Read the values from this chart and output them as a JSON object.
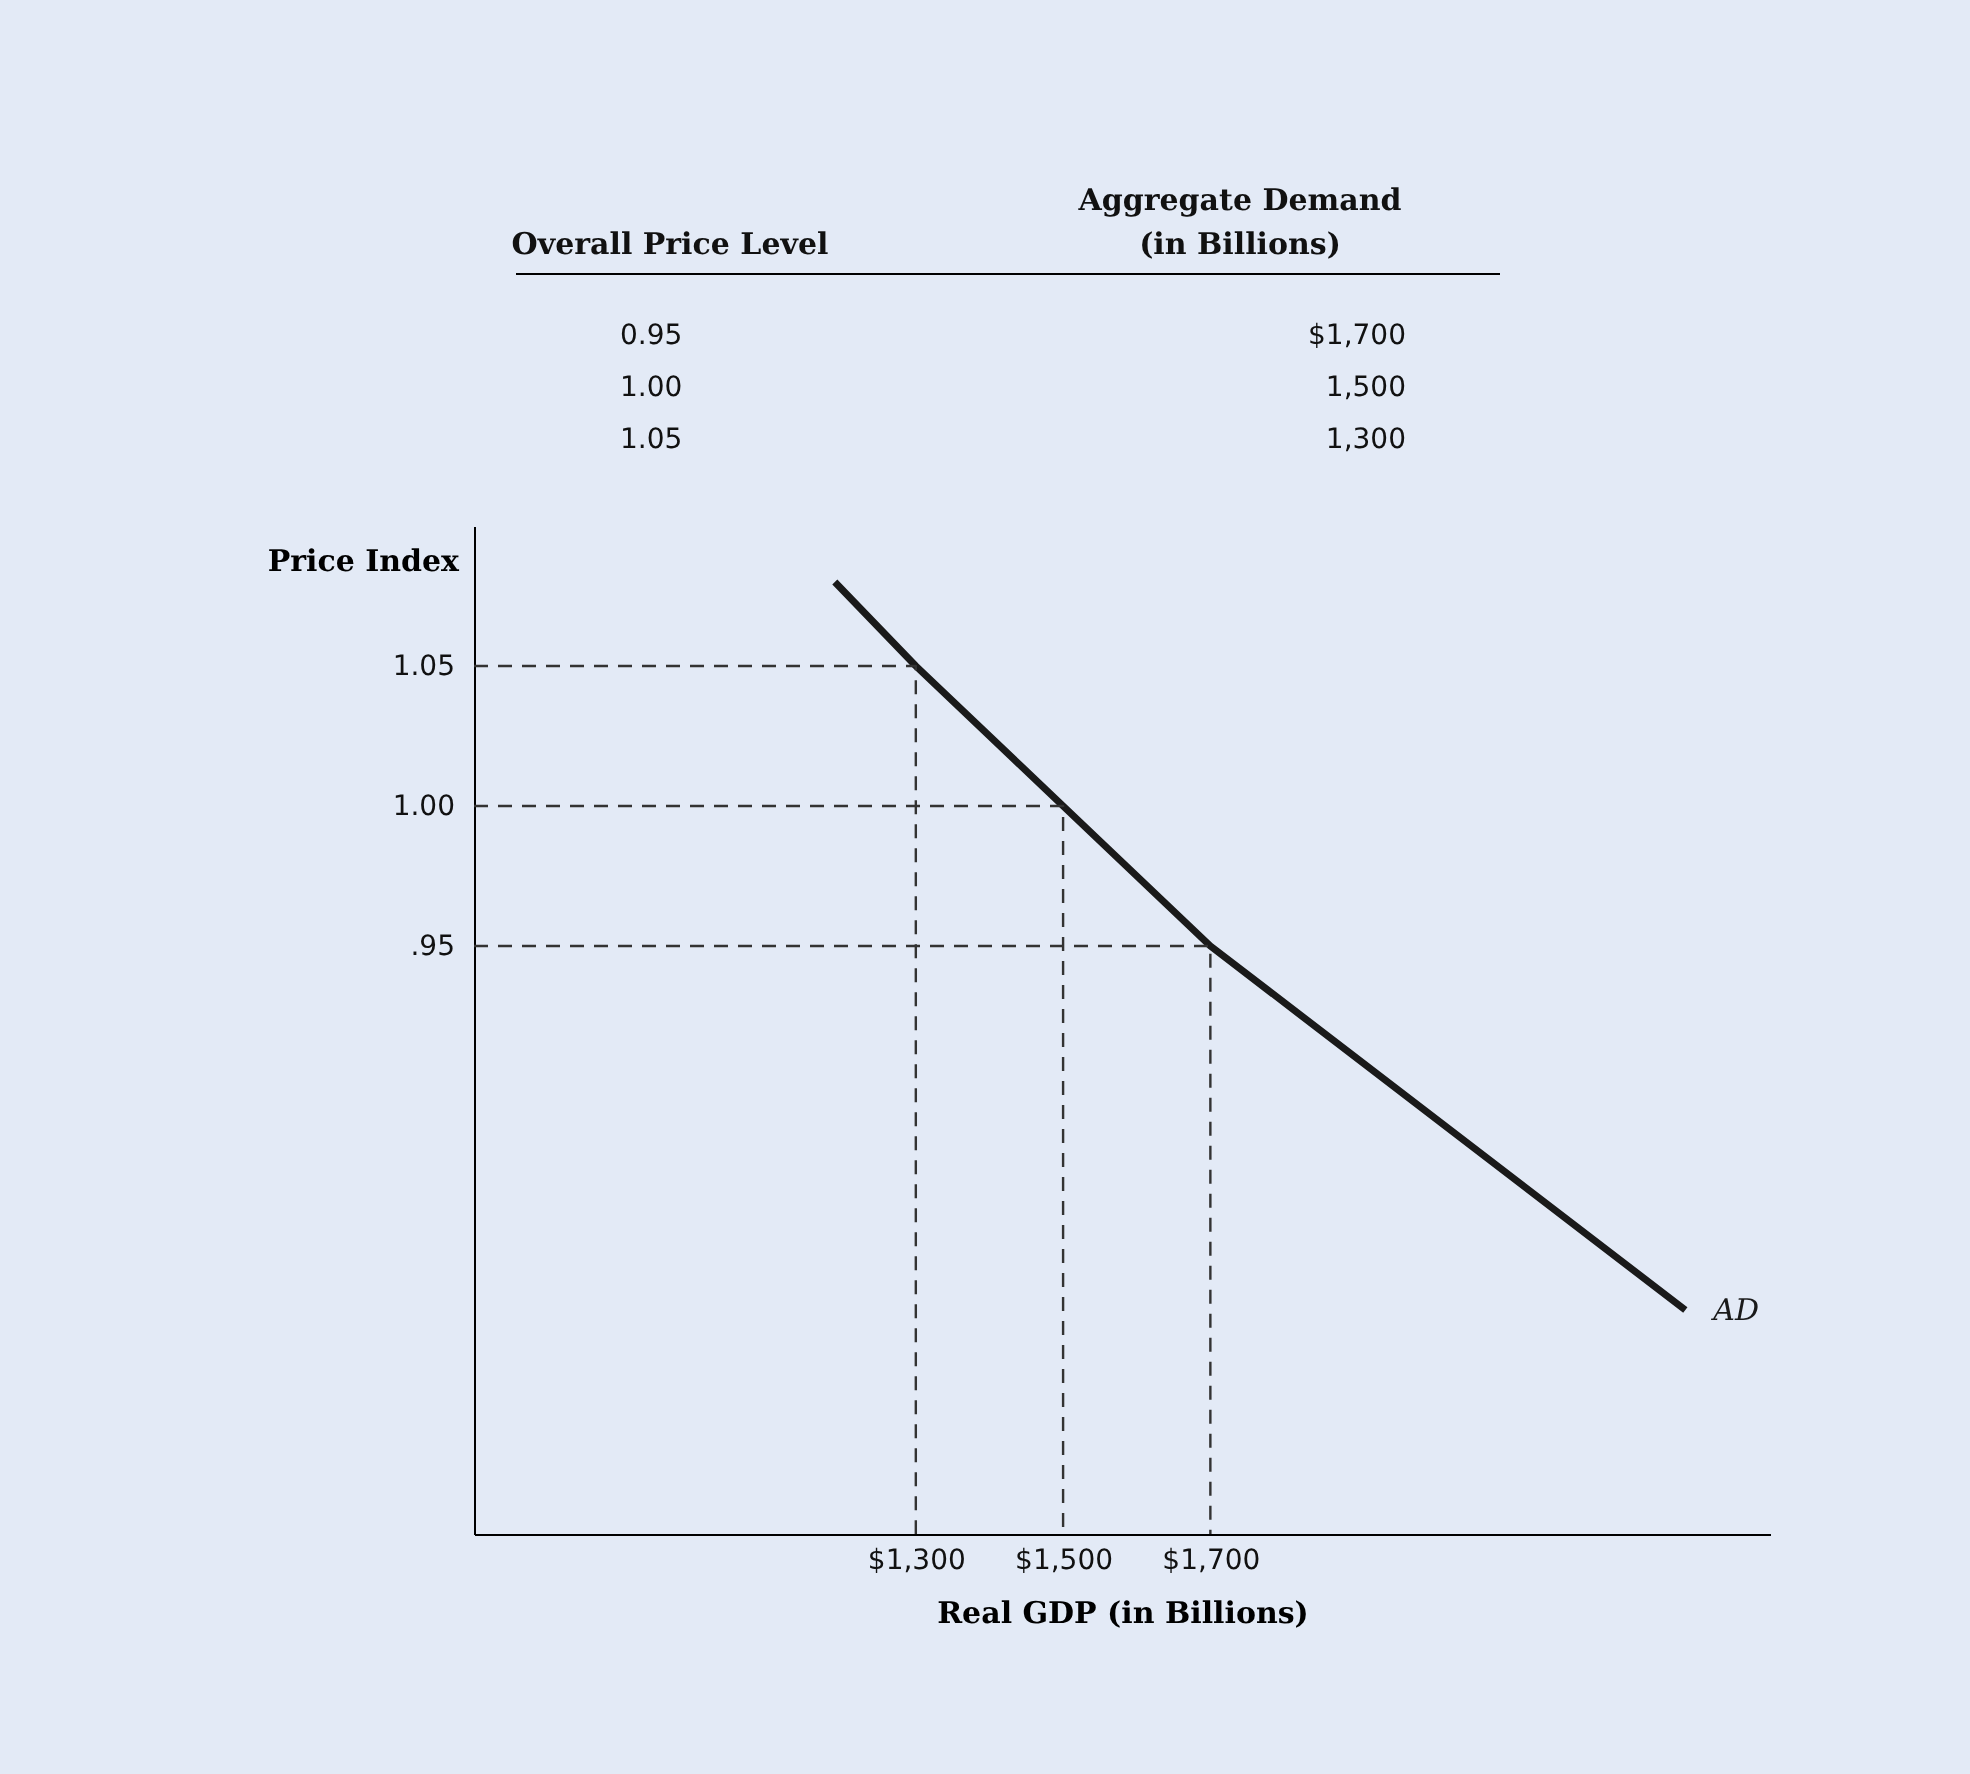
{
  "chart_data": {
    "type": "line",
    "xlabel": "Real GDP (in Billions)",
    "ylabel": "Price Index",
    "xlim": [
      700,
      2460
    ],
    "ylim": [
      0.74,
      1.1
    ],
    "xticks": [
      {
        "value": 1300,
        "label": "$1,300"
      },
      {
        "value": 1500,
        "label": "$1,500"
      },
      {
        "value": 1700,
        "label": "$1,700"
      }
    ],
    "yticks": [
      {
        "value": 0.95,
        "label": ".95"
      },
      {
        "value": 1.0,
        "label": "1.00"
      },
      1.05
    ],
    "grid": false,
    "marker": "none",
    "series": [
      {
        "name": "AD",
        "color": "#1a1a1a",
        "line_style": "solid",
        "x": [
          1190,
          1300,
          1500,
          1700,
          2345
        ],
        "values": [
          1.08,
          1.05,
          1.0,
          0.95,
          0.82
        ]
      },
      {
        "color": "#333333",
        "line_style": "dashed",
        "x": [
          700,
          1300,
          1300
        ],
        "values": [
          1.05,
          1.05,
          0.74
        ]
      },
      {
        "color": "#333333",
        "line_style": "dashed",
        "x": [
          700,
          1500,
          1500
        ],
        "values": [
          1.0,
          1.0,
          0.74
        ]
      },
      {
        "color": "#333333",
        "line_style": "dashed",
        "x": [
          700,
          1700,
          1700
        ],
        "values": [
          0.95,
          0.95,
          0.74
        ]
      }
    ],
    "annotations": [
      "Overall Price Level",
      "Aggregate Demand\n(in Billions)",
      "0.95",
      "$1,700",
      "1.00",
      "1,500",
      "1.05",
      "1,300"
    ]
  }
}
